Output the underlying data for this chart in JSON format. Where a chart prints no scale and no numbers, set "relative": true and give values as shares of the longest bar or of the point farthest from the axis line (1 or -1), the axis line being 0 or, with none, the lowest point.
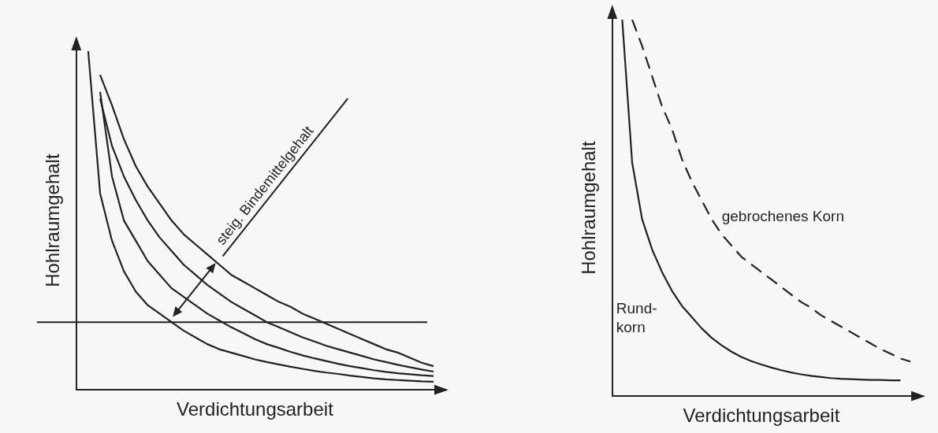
{
  "chart_data": [
    {
      "type": "line",
      "relative": true,
      "xlabel": "Verdichtungsarbeit",
      "ylabel": "Hohlraumgehalt",
      "annotations": [
        "steig. Bindemittelgehalt"
      ],
      "marker": "none",
      "line_style": "solid",
      "legend": false,
      "grid": false,
      "tick_labels": false,
      "categories": [
        null,
        null,
        null,
        null,
        null,
        null,
        null,
        null,
        null,
        null,
        null,
        null,
        null,
        null,
        null,
        null,
        null,
        null,
        null,
        null,
        null,
        null,
        null,
        null,
        null,
        null,
        null,
        null,
        null,
        null,
        null
      ],
      "ref_lines": [
        {
          "axis": "y",
          "value": 0.2,
          "color": "#222222"
        }
      ],
      "series": [
        {
          "color": "#222222",
          "values": [
            null,
            1.0,
            0.58,
            0.44,
            0.35,
            0.29,
            0.25,
            0.225,
            0.2,
            0.175,
            0.155,
            0.135,
            0.12,
            0.11,
            0.1,
            0.09,
            0.082,
            0.075,
            0.068,
            0.062,
            0.056,
            0.051,
            0.047,
            0.042,
            0.038,
            0.034,
            0.031,
            0.029,
            0.027,
            0.025,
            0.024
          ]
        },
        {
          "color": "#222222",
          "values": [
            null,
            null,
            0.88,
            0.63,
            0.5,
            0.44,
            0.38,
            0.34,
            0.3,
            0.275,
            0.25,
            0.225,
            0.205,
            0.185,
            0.168,
            0.15,
            0.135,
            0.124,
            0.112,
            0.102,
            0.093,
            0.085,
            0.077,
            0.07,
            0.064,
            0.058,
            0.053,
            0.049,
            0.046,
            0.043,
            0.041
          ]
        },
        {
          "color": "#222222",
          "values": [
            null,
            null,
            0.86,
            0.72,
            0.63,
            0.56,
            0.5,
            0.45,
            0.41,
            0.37,
            0.34,
            0.31,
            0.285,
            0.26,
            0.24,
            0.22,
            0.2,
            0.185,
            0.17,
            0.155,
            0.143,
            0.13,
            0.12,
            0.11,
            0.1,
            0.09,
            0.082,
            0.074,
            0.067,
            0.06,
            0.054
          ]
        },
        {
          "color": "#222222",
          "values": [
            null,
            null,
            0.93,
            0.84,
            0.74,
            0.66,
            0.6,
            0.55,
            0.5,
            0.46,
            0.43,
            0.4,
            0.37,
            0.34,
            0.32,
            0.3,
            0.28,
            0.26,
            0.245,
            0.225,
            0.21,
            0.195,
            0.18,
            0.165,
            0.15,
            0.135,
            0.12,
            0.11,
            0.095,
            0.08,
            0.07
          ]
        }
      ]
    },
    {
      "type": "line",
      "relative": true,
      "xlabel": "Verdichtungsarbeit",
      "ylabel": "Hohlraumgehalt",
      "marker": "none",
      "legend": false,
      "grid": false,
      "tick_labels": false,
      "categories": [
        null,
        null,
        null,
        null,
        null,
        null,
        null,
        null,
        null,
        null,
        null,
        null,
        null,
        null,
        null,
        null,
        null,
        null,
        null,
        null,
        null,
        null,
        null,
        null,
        null,
        null,
        null,
        null,
        null,
        null,
        null
      ],
      "series": [
        {
          "name": "Rund-\nkorn",
          "color": "#222222",
          "line_style": "solid",
          "values": [
            null,
            1.0,
            0.62,
            0.47,
            0.39,
            0.33,
            0.28,
            0.24,
            0.21,
            0.18,
            0.155,
            0.135,
            0.118,
            0.104,
            0.093,
            0.084,
            0.076,
            0.069,
            0.063,
            0.058,
            0.054,
            0.051,
            0.048,
            0.046,
            0.045,
            0.044,
            0.043,
            0.043,
            0.042,
            0.042,
            null
          ]
        },
        {
          "name": "gebrochenes Korn",
          "color": "#222222",
          "line_style": "dashed",
          "values": [
            null,
            null,
            1.0,
            0.93,
            0.85,
            0.77,
            0.71,
            0.63,
            0.57,
            0.52,
            0.47,
            0.43,
            0.4,
            0.37,
            0.35,
            0.33,
            0.31,
            0.29,
            0.27,
            0.25,
            0.235,
            0.215,
            0.2,
            0.185,
            0.17,
            0.155,
            0.14,
            0.125,
            0.113,
            0.1,
            0.092
          ]
        }
      ]
    }
  ]
}
